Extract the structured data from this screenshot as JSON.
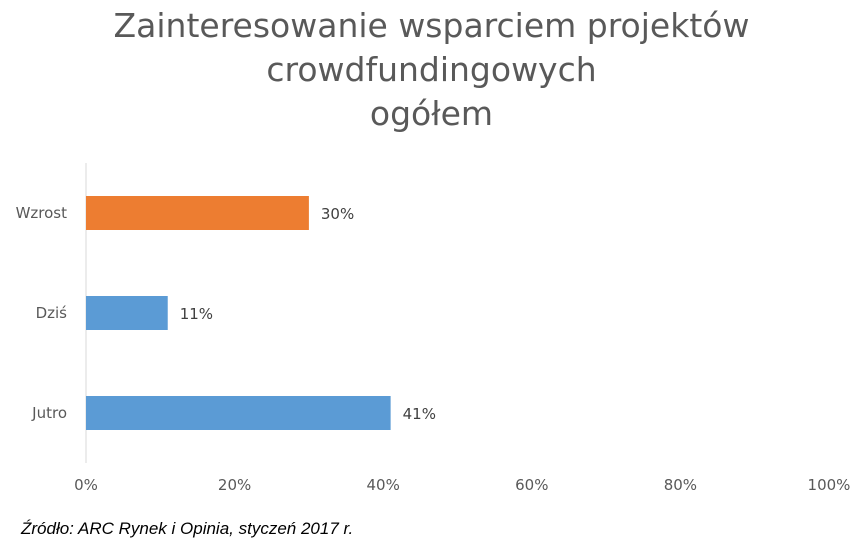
{
  "chart_data": {
    "type": "bar",
    "orientation": "horizontal",
    "title_lines": [
      "Zainteresowanie wsparciem projektów",
      "crowdfundingowych",
      "ogółem"
    ],
    "categories": [
      "Wzrost",
      "Dziś",
      "Jutro"
    ],
    "values": [
      30,
      11,
      41
    ],
    "data_labels": [
      "30%",
      "11%",
      "41%"
    ],
    "bar_colors": [
      "#ED7D31",
      "#5B9BD5",
      "#5B9BD5"
    ],
    "xlim": [
      0,
      100
    ],
    "x_ticks": [
      0,
      20,
      40,
      60,
      80,
      100
    ],
    "x_tick_labels": [
      "0%",
      "20%",
      "40%",
      "60%",
      "80%",
      "100%"
    ],
    "grid": false,
    "legend": "none"
  },
  "source": "Źródło: ARC Rynek i Opinia, styczeń 2017 r.",
  "colors": {
    "title": "#595959",
    "axis_text": "#595959",
    "axis_line": "#D9D9D9"
  }
}
